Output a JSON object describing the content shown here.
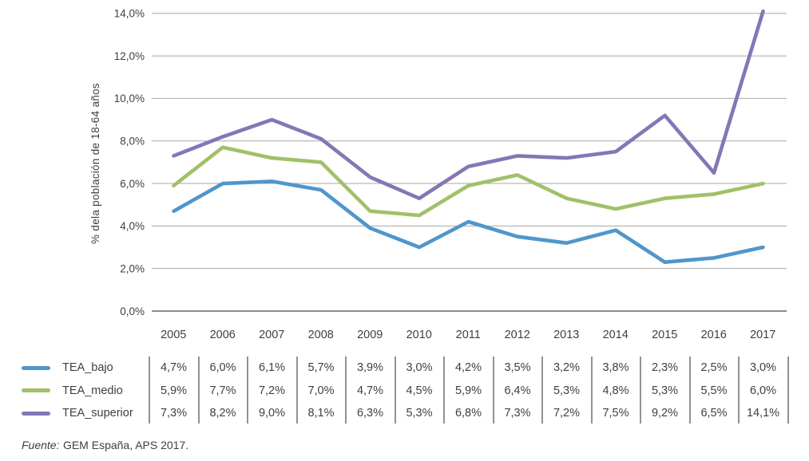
{
  "chart_data": {
    "type": "line",
    "title": "",
    "xlabel": "",
    "ylabel": "% dela población de 18-64 años",
    "ylim": [
      0,
      14
    ],
    "grid": true,
    "legend_position": "left-of-table",
    "categories": [
      "2005",
      "2006",
      "2007",
      "2008",
      "2009",
      "2010",
      "2011",
      "2012",
      "2013",
      "2014",
      "2015",
      "2016",
      "2017"
    ],
    "yticks": [
      "0,0%",
      "2,0%",
      "4,0%",
      "6,0%",
      "8,0%",
      "10,0%",
      "12,0%",
      "14,0%"
    ],
    "series": [
      {
        "name": "TEA_bajo",
        "color": "#4F96CB",
        "values": [
          4.7,
          6.0,
          6.1,
          5.7,
          3.9,
          3.0,
          4.2,
          3.5,
          3.2,
          3.8,
          2.3,
          2.5,
          3.0
        ]
      },
      {
        "name": "TEA_medio",
        "color": "#A0C168",
        "values": [
          5.9,
          7.7,
          7.2,
          7.0,
          4.7,
          4.5,
          5.9,
          6.4,
          5.3,
          4.8,
          5.3,
          5.5,
          6.0
        ]
      },
      {
        "name": "TEA_superior",
        "color": "#8477B5",
        "values": [
          7.3,
          8.2,
          9.0,
          8.1,
          6.3,
          5.3,
          6.8,
          7.3,
          7.2,
          7.5,
          9.2,
          6.5,
          14.1
        ]
      }
    ]
  },
  "table": {
    "rows": [
      {
        "label": "TEA_bajo",
        "values": [
          "4,7%",
          "6,0%",
          "6,1%",
          "5,7%",
          "3,9%",
          "3,0%",
          "4,2%",
          "3,5%",
          "3,2%",
          "3,8%",
          "2,3%",
          "2,5%",
          "3,0%"
        ]
      },
      {
        "label": "TEA_medio",
        "values": [
          "5,9%",
          "7,7%",
          "7,2%",
          "7,0%",
          "4,7%",
          "4,5%",
          "5,9%",
          "6,4%",
          "5,3%",
          "4,8%",
          "5,3%",
          "5,5%",
          "6,0%"
        ]
      },
      {
        "label": "TEA_superior",
        "values": [
          "7,3%",
          "8,2%",
          "9,0%",
          "8,1%",
          "6,3%",
          "5,3%",
          "6,8%",
          "7,3%",
          "7,2%",
          "7,5%",
          "9,2%",
          "6,5%",
          "14,1%"
        ]
      }
    ]
  },
  "footer": {
    "source_label": "Fuente:",
    "source_text": "GEM España, APS 2017."
  },
  "colors": {
    "text": "#3F3F3F",
    "gridline": "#A7A7A7",
    "axis_line": "#8C8C8C",
    "divider": "#929292"
  }
}
